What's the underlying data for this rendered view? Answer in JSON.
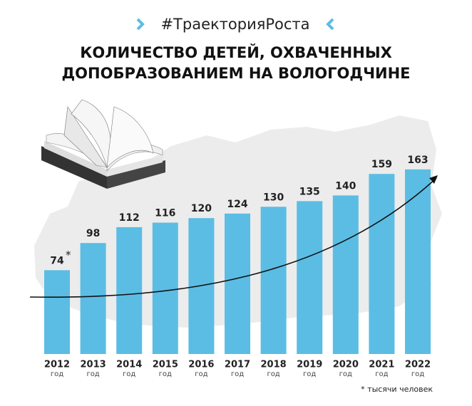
{
  "chart_data": {
    "type": "bar",
    "hashtag": "#ТраекторияРоста",
    "title": [
      "КОЛИЧЕСТВО ДЕТЕЙ, ОХВАЧЕННЫХ",
      "ДОПОБРАЗОВАНИЕМ НА ВОЛОГОДЧИНЕ"
    ],
    "categories": [
      "2012",
      "2013",
      "2014",
      "2015",
      "2016",
      "2017",
      "2018",
      "2019",
      "2020",
      "2021",
      "2022"
    ],
    "category_sublabel": "год",
    "values": [
      74,
      98,
      112,
      116,
      120,
      124,
      130,
      135,
      140,
      159,
      163
    ],
    "color": "#5bbde4",
    "footnote_marker": "*",
    "footnote": "* тысячи человек"
  }
}
